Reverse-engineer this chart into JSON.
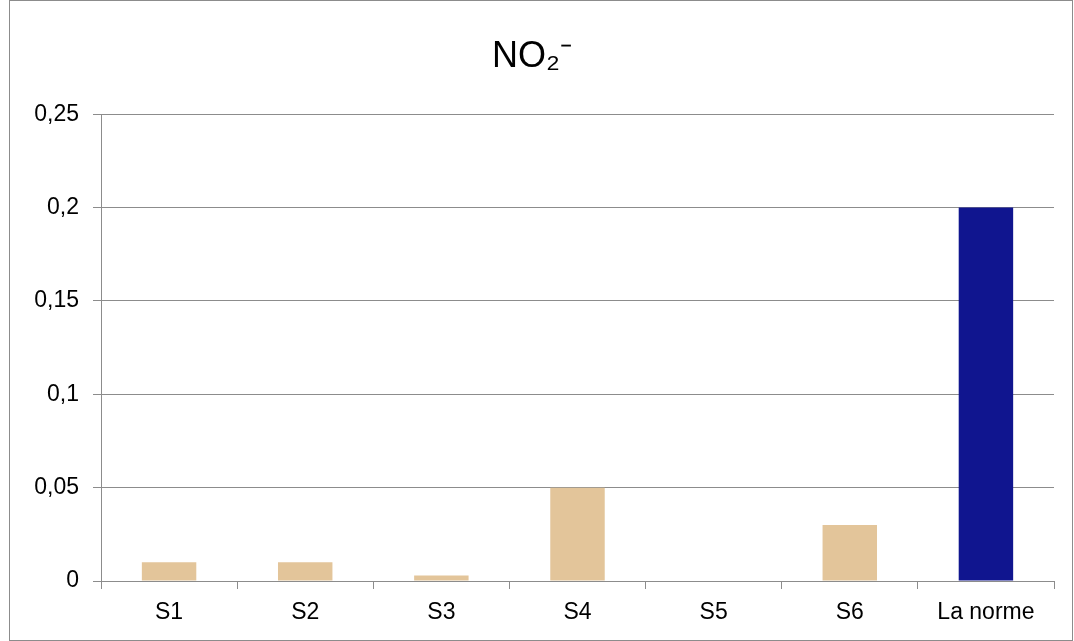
{
  "chart_data": {
    "type": "bar",
    "title": "NO₂⁻",
    "categories": [
      "S1",
      "S2",
      "S3",
      "S4",
      "S5",
      "S6",
      "La norme"
    ],
    "values": [
      0.01,
      0.01,
      0.003,
      0.05,
      0,
      0.03,
      0.2
    ],
    "colors": [
      "#e3c59a",
      "#e3c59a",
      "#e3c59a",
      "#e3c59a",
      "#e3c59a",
      "#e3c59a",
      "#10158f"
    ],
    "ylim": [
      0,
      0.25
    ],
    "yticks": [
      0,
      {
        "value": 0.05,
        "label": "0,05"
      },
      {
        "value": 0.1,
        "label": "0,1"
      },
      {
        "value": 0.15,
        "label": "0,15"
      },
      {
        "value": 0.2,
        "label": "0,2"
      },
      {
        "value": 0.25,
        "label": "0,25"
      }
    ],
    "grid": "y"
  }
}
